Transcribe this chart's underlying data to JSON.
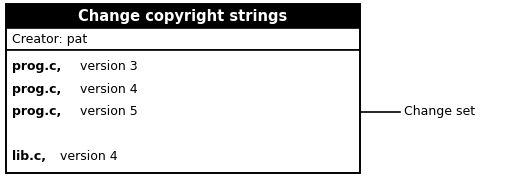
{
  "title": "Change copyright strings",
  "creator_label": "Creator: pat",
  "items": [
    {
      "bold": "prog.c,",
      "rest": " version 3"
    },
    {
      "bold": "prog.c,",
      "rest": " version 4"
    },
    {
      "bold": "prog.c,",
      "rest": " version 5"
    },
    {
      "bold": null,
      "rest": null
    },
    {
      "bold": "lib.c,",
      "rest": " version 4"
    }
  ],
  "annotation": "Change set",
  "title_bg": "#000000",
  "title_fg": "#ffffff",
  "box_bg": "#ffffff",
  "box_border": "#000000",
  "text_color": "#000000",
  "fig_bg": "#ffffff",
  "title_fontsize": 10.5,
  "body_fontsize": 9.0,
  "fig_w": 5.1,
  "fig_h": 1.77
}
